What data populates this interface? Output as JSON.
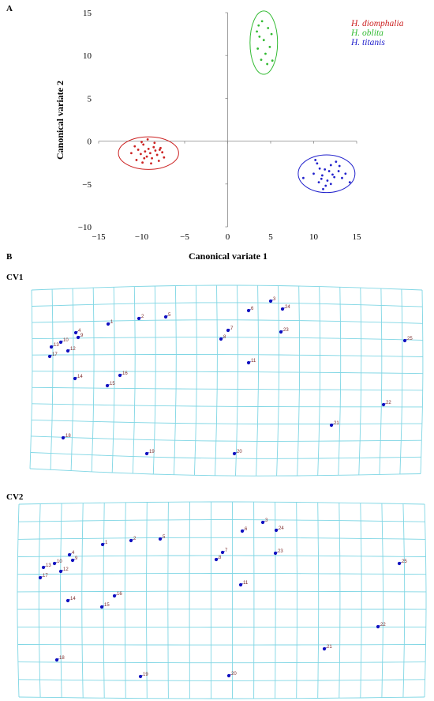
{
  "panel_a": {
    "label": "A",
    "chart_data": {
      "type": "scatter",
      "xlabel": "Canonical  variate  1",
      "ylabel": "Canonical  variate  2",
      "xlim": [
        -15,
        15
      ],
      "ylim": [
        -10,
        15
      ],
      "xticks": [
        "−15",
        "−10",
        "−5",
        "0",
        "5",
        "10",
        "15"
      ],
      "yticks": [
        "15",
        "10",
        "5",
        "0",
        "−5",
        "−10"
      ],
      "legend_position": "top-right",
      "grid": false,
      "series": [
        {
          "name": "H. diomphalia",
          "color": "#cc2222",
          "ellipse": {
            "cx": -9.2,
            "cy": -1.4,
            "rx": 3.5,
            "ry": 1.9
          },
          "points": [
            [
              -10.8,
              -0.6
            ],
            [
              -10.4,
              -1.0
            ],
            [
              -10.1,
              -1.5
            ],
            [
              -9.8,
              -0.4
            ],
            [
              -9.6,
              -1.2
            ],
            [
              -9.4,
              -1.8
            ],
            [
              -9.2,
              -0.9
            ],
            [
              -9.0,
              -1.4
            ],
            [
              -8.8,
              -2.0
            ],
            [
              -8.6,
              -0.7
            ],
            [
              -8.4,
              -1.1
            ],
            [
              -8.2,
              -1.6
            ],
            [
              -8.0,
              -2.3
            ],
            [
              -7.8,
              -0.8
            ],
            [
              -7.6,
              -1.3
            ],
            [
              -10.6,
              -2.2
            ],
            [
              -9.9,
              -2.5
            ],
            [
              -9.3,
              0.2
            ],
            [
              -8.5,
              -0.2
            ],
            [
              -7.4,
              -1.9
            ],
            [
              -11.2,
              -1.4
            ],
            [
              -8.9,
              -2.6
            ],
            [
              -7.9,
              -1.0
            ],
            [
              -10.0,
              -0.1
            ],
            [
              -9.7,
              -2.0
            ]
          ]
        },
        {
          "name": "H. oblita",
          "color": "#33bb33",
          "ellipse": {
            "cx": 4.2,
            "cy": 11.5,
            "rx": 1.6,
            "ry": 3.7
          },
          "points": [
            [
              3.6,
              13.5
            ],
            [
              4.0,
              14.0
            ],
            [
              4.7,
              13.2
            ],
            [
              3.7,
              12.2
            ],
            [
              4.2,
              11.8
            ],
            [
              4.9,
              11.0
            ],
            [
              3.5,
              10.8
            ],
            [
              4.4,
              10.2
            ],
            [
              3.9,
              9.5
            ],
            [
              4.6,
              9.0
            ],
            [
              5.2,
              9.4
            ],
            [
              3.4,
              12.8
            ],
            [
              5.1,
              12.5
            ]
          ]
        },
        {
          "name": "H. titanis",
          "color": "#2222cc",
          "ellipse": {
            "cx": 11.5,
            "cy": -3.8,
            "rx": 3.3,
            "ry": 2.2
          },
          "points": [
            [
              8.8,
              -4.3
            ],
            [
              10.4,
              -2.6
            ],
            [
              10.0,
              -3.8
            ],
            [
              10.7,
              -3.2
            ],
            [
              11.0,
              -4.0
            ],
            [
              11.3,
              -3.3
            ],
            [
              11.6,
              -4.6
            ],
            [
              12.0,
              -2.8
            ],
            [
              12.2,
              -3.9
            ],
            [
              12.6,
              -2.4
            ],
            [
              12.9,
              -3.5
            ],
            [
              13.3,
              -4.3
            ],
            [
              11.4,
              -5.2
            ],
            [
              10.6,
              -4.8
            ],
            [
              12.0,
              -5.0
            ],
            [
              14.2,
              -4.8
            ],
            [
              10.2,
              -2.2
            ],
            [
              13.0,
              -2.9
            ],
            [
              11.8,
              -3.5
            ],
            [
              10.9,
              -4.4
            ],
            [
              12.4,
              -4.2
            ],
            [
              11.1,
              -5.6
            ],
            [
              13.7,
              -3.8
            ]
          ]
        }
      ]
    }
  },
  "panel_b": {
    "label": "B",
    "cv1": {
      "title": "CV1",
      "landmarks": [
        "1",
        "2",
        "3",
        "4",
        "5",
        "6",
        "7",
        "8",
        "9",
        "10",
        "11",
        "12",
        "13",
        "14",
        "15",
        "16",
        "17",
        "18",
        "19",
        "20",
        "21",
        "22",
        "23",
        "24",
        "25"
      ]
    },
    "cv2": {
      "title": "CV2",
      "landmarks": [
        "1",
        "2",
        "3",
        "4",
        "5",
        "6",
        "7",
        "8",
        "9",
        "10",
        "11",
        "12",
        "13",
        "14",
        "15",
        "16",
        "17",
        "18",
        "19",
        "20",
        "21",
        "22",
        "23",
        "24",
        "25"
      ]
    }
  },
  "colors": {
    "grid_line": "#7fd6e4",
    "landmark_dot": "#1010c0",
    "landmark_label": "#7a2a2a"
  }
}
